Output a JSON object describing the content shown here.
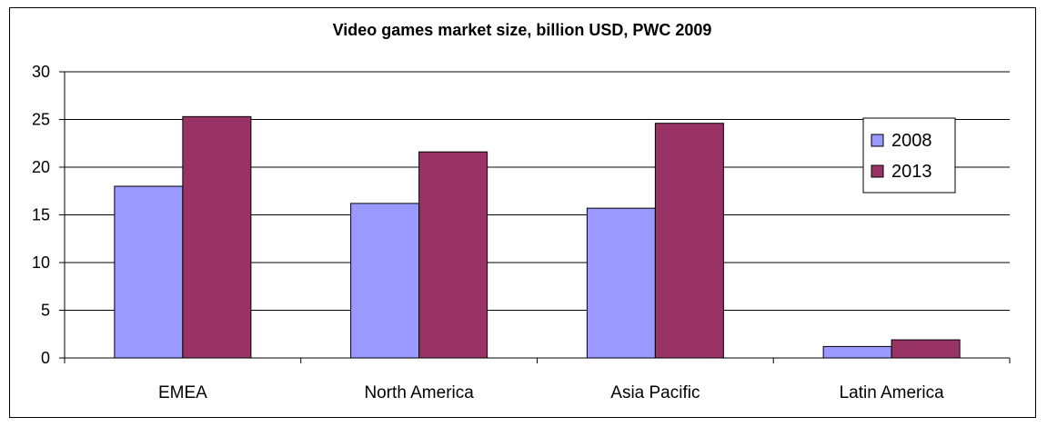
{
  "chart_data": {
    "type": "bar",
    "title": "Video games market size, billion USD, PWC 2009",
    "xlabel": "",
    "ylabel": "",
    "categories": [
      "EMEA",
      "North America",
      "Asia Pacific",
      "Latin America"
    ],
    "series": [
      {
        "name": "2008",
        "values": [
          18.0,
          16.2,
          15.7,
          1.2
        ],
        "color": "#9999ff"
      },
      {
        "name": "2013",
        "values": [
          25.3,
          21.6,
          24.6,
          1.9
        ],
        "color": "#993366"
      }
    ],
    "ylim": [
      0,
      30
    ],
    "yticks": [
      0,
      5,
      10,
      15,
      20,
      25,
      30
    ],
    "grid": true,
    "legend_position": "right"
  }
}
